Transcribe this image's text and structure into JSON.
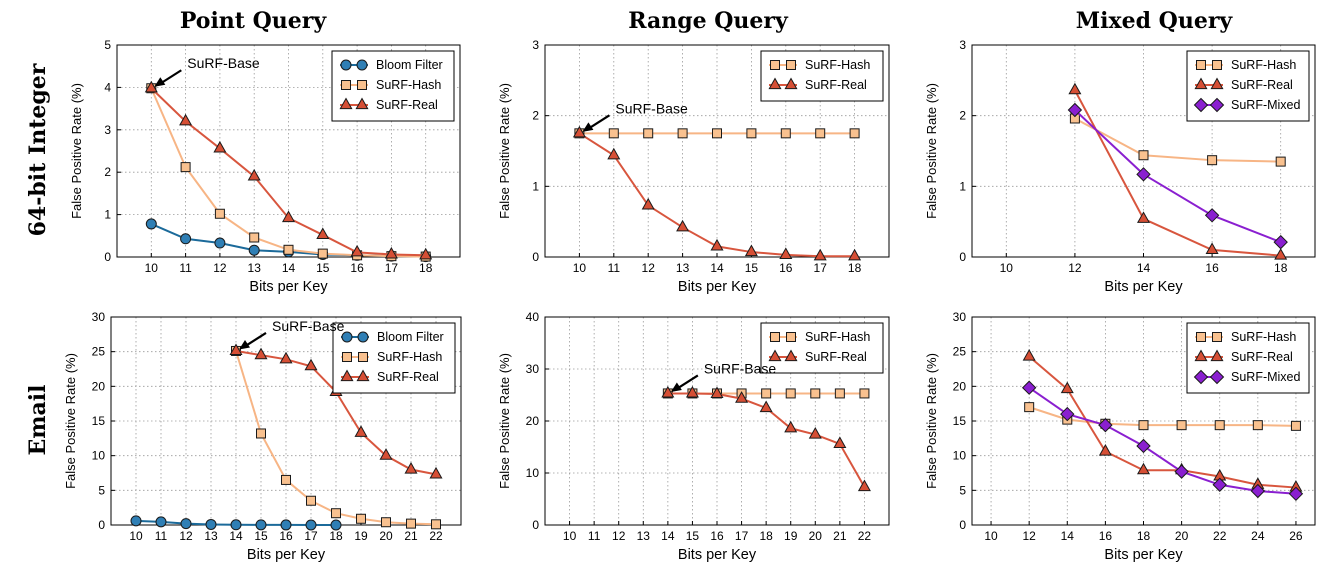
{
  "column_titles": [
    "Point Query",
    "Range Query",
    "Mixed Query"
  ],
  "row_titles": [
    "64-bit Integer",
    "Email"
  ],
  "colors": {
    "Bloom Filter": {
      "line": "#1b6a9a",
      "fill": "#2f7fb5"
    },
    "SuRF-Hash": {
      "line": "#f7b585",
      "fill": "#f9c18f"
    },
    "SuRF-Real": {
      "line": "#d8563e",
      "fill": "#d64f35"
    },
    "SuRF-Mixed": {
      "line": "#8a1fd0",
      "fill": "#8a1fd0"
    }
  },
  "chart_data": [
    {
      "type": "line",
      "xlabel": "Bits per Key",
      "ylabel": "False Positive Rate (%)",
      "x_ticks": [
        10,
        11,
        12,
        13,
        14,
        15,
        16,
        17,
        18
      ],
      "xlim": [
        9,
        19
      ],
      "y_ticks": [
        0,
        1,
        2,
        3,
        4,
        5
      ],
      "ylim": [
        0,
        5
      ],
      "grid": true,
      "legend": "top-right",
      "annotation": {
        "text": "SuRF-Base",
        "x": 10,
        "y": 3.98
      },
      "series": [
        {
          "name": "Bloom Filter",
          "marker": "circle",
          "x": [
            10,
            11,
            12,
            13,
            14,
            15,
            16,
            17,
            18
          ],
          "values": [
            0.78,
            0.43,
            0.33,
            0.16,
            0.12,
            0.06,
            0.04,
            0.02,
            0.01
          ]
        },
        {
          "name": "SuRF-Hash",
          "marker": "square",
          "x": [
            10,
            11,
            12,
            13,
            14,
            15,
            16,
            17,
            18
          ],
          "values": [
            3.98,
            2.12,
            1.02,
            0.46,
            0.17,
            0.08,
            0.04,
            0.02,
            0.01
          ]
        },
        {
          "name": "SuRF-Real",
          "marker": "triangle",
          "x": [
            10,
            11,
            12,
            13,
            14,
            15,
            16,
            17,
            18
          ],
          "values": [
            3.98,
            3.2,
            2.56,
            1.9,
            0.92,
            0.52,
            0.11,
            0.06,
            0.04
          ]
        }
      ]
    },
    {
      "type": "line",
      "xlabel": "Bits per Key",
      "ylabel": "False Positive Rate (%)",
      "x_ticks": [
        10,
        11,
        12,
        13,
        14,
        15,
        16,
        17,
        18
      ],
      "xlim": [
        9,
        19
      ],
      "y_ticks": [
        0,
        1,
        2,
        3
      ],
      "ylim": [
        0,
        3
      ],
      "grid": true,
      "legend": "top-right",
      "annotation": {
        "text": "SuRF-Base",
        "x": 10,
        "y": 1.75
      },
      "series": [
        {
          "name": "SuRF-Hash",
          "marker": "square",
          "x": [
            10,
            11,
            12,
            13,
            14,
            15,
            16,
            17,
            18
          ],
          "values": [
            1.75,
            1.75,
            1.75,
            1.75,
            1.75,
            1.75,
            1.75,
            1.75,
            1.75
          ]
        },
        {
          "name": "SuRF-Real",
          "marker": "triangle",
          "x": [
            10,
            11,
            12,
            13,
            14,
            15,
            16,
            17,
            18
          ],
          "values": [
            1.75,
            1.44,
            0.73,
            0.42,
            0.15,
            0.07,
            0.03,
            0.01,
            0.01
          ]
        }
      ]
    },
    {
      "type": "line",
      "xlabel": "Bits per Key",
      "ylabel": "False Positive Rate (%)",
      "x_ticks": [
        10,
        12,
        14,
        16,
        18
      ],
      "xlim": [
        9,
        19
      ],
      "y_ticks": [
        0,
        1,
        2,
        3
      ],
      "ylim": [
        0,
        3
      ],
      "grid": true,
      "legend": "top-right",
      "series": [
        {
          "name": "SuRF-Hash",
          "marker": "square",
          "x": [
            12,
            14,
            16,
            18
          ],
          "values": [
            1.96,
            1.44,
            1.37,
            1.35
          ]
        },
        {
          "name": "SuRF-Real",
          "marker": "triangle",
          "x": [
            12,
            14,
            16,
            18
          ],
          "values": [
            2.36,
            0.54,
            0.1,
            0.02
          ]
        },
        {
          "name": "SuRF-Mixed",
          "marker": "diamond",
          "x": [
            12,
            14,
            16,
            18
          ],
          "values": [
            2.08,
            1.17,
            0.59,
            0.21
          ]
        }
      ]
    },
    {
      "type": "line",
      "xlabel": "Bits per Key",
      "ylabel": "False Positive Rate (%)",
      "x_ticks": [
        10,
        11,
        12,
        13,
        14,
        15,
        16,
        17,
        18,
        19,
        20,
        21,
        22
      ],
      "xlim": [
        9,
        23
      ],
      "y_ticks": [
        0,
        5,
        10,
        15,
        20,
        25,
        30
      ],
      "ylim": [
        0,
        30
      ],
      "grid": true,
      "legend": "top-right",
      "annotation": {
        "text": "SuRF-Base",
        "x": 14,
        "y": 25.1
      },
      "series": [
        {
          "name": "Bloom Filter",
          "marker": "circle",
          "x": [
            10,
            11,
            12,
            13,
            14,
            15,
            16,
            17,
            18
          ],
          "values": [
            0.6,
            0.45,
            0.2,
            0.08,
            0.03,
            0.02,
            0.01,
            0.0,
            0.0
          ]
        },
        {
          "name": "SuRF-Hash",
          "marker": "square",
          "x": [
            14,
            15,
            16,
            17,
            18,
            19,
            20,
            21,
            22
          ],
          "values": [
            25.1,
            13.2,
            6.5,
            3.5,
            1.7,
            0.9,
            0.4,
            0.2,
            0.1
          ]
        },
        {
          "name": "SuRF-Real",
          "marker": "triangle",
          "x": [
            14,
            15,
            16,
            17,
            18,
            19,
            20,
            21,
            22
          ],
          "values": [
            25.1,
            24.5,
            23.9,
            22.9,
            19.2,
            13.3,
            10.0,
            8.0,
            7.3
          ]
        }
      ]
    },
    {
      "type": "line",
      "xlabel": "Bits per Key",
      "ylabel": "False Positive Rate (%)",
      "x_ticks": [
        10,
        11,
        12,
        13,
        14,
        15,
        16,
        17,
        18,
        19,
        20,
        21,
        22
      ],
      "xlim": [
        9,
        23
      ],
      "y_ticks": [
        0,
        10,
        20,
        30,
        40
      ],
      "ylim": [
        0,
        40
      ],
      "grid": true,
      "legend": "top-right",
      "annotation": {
        "text": "SuRF-Base",
        "x": 14,
        "y": 25.3
      },
      "series": [
        {
          "name": "SuRF-Hash",
          "marker": "square",
          "x": [
            14,
            15,
            16,
            17,
            18,
            19,
            20,
            21,
            22
          ],
          "values": [
            25.3,
            25.3,
            25.3,
            25.3,
            25.3,
            25.3,
            25.3,
            25.3,
            25.3
          ]
        },
        {
          "name": "SuRF-Real",
          "marker": "triangle",
          "x": [
            14,
            15,
            16,
            17,
            18,
            19,
            20,
            21,
            22
          ],
          "values": [
            25.3,
            25.3,
            25.2,
            24.3,
            22.5,
            18.6,
            17.4,
            15.6,
            7.3
          ]
        }
      ]
    },
    {
      "type": "line",
      "xlabel": "Bits per Key",
      "ylabel": "False Positive Rate (%)",
      "x_ticks": [
        10,
        12,
        14,
        16,
        18,
        20,
        22,
        24,
        26
      ],
      "xlim": [
        9,
        27
      ],
      "y_ticks": [
        0,
        5,
        10,
        15,
        20,
        25,
        30
      ],
      "ylim": [
        0,
        30
      ],
      "grid": true,
      "legend": "top-right",
      "series": [
        {
          "name": "SuRF-Hash",
          "marker": "square",
          "x": [
            12,
            14,
            16,
            18,
            20,
            22,
            24,
            26
          ],
          "values": [
            17.0,
            15.2,
            14.6,
            14.4,
            14.4,
            14.4,
            14.4,
            14.3
          ]
        },
        {
          "name": "SuRF-Real",
          "marker": "triangle",
          "x": [
            12,
            14,
            16,
            18,
            20,
            22,
            24,
            26
          ],
          "values": [
            24.3,
            19.6,
            10.6,
            7.9,
            7.9,
            7.0,
            5.8,
            5.4
          ]
        },
        {
          "name": "SuRF-Mixed",
          "marker": "diamond",
          "x": [
            12,
            14,
            16,
            18,
            20,
            22,
            24,
            26
          ],
          "values": [
            19.8,
            16.0,
            14.4,
            11.4,
            7.7,
            5.8,
            4.9,
            4.5
          ]
        }
      ]
    }
  ]
}
